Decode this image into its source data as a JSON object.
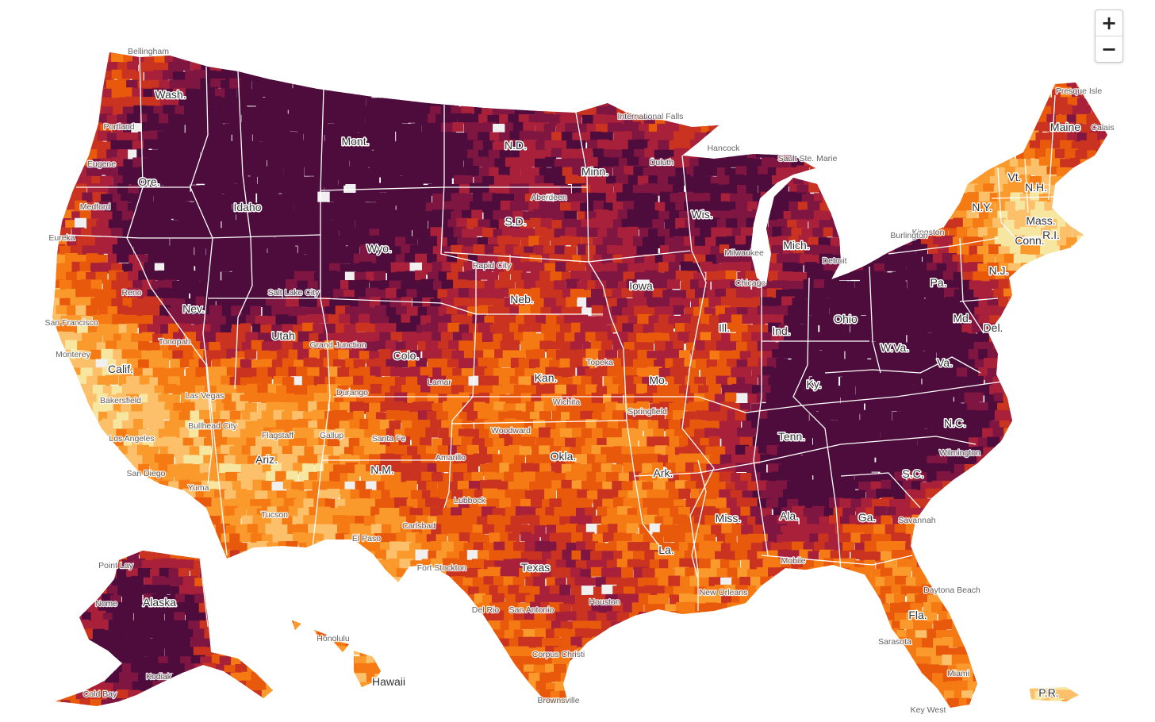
{
  "zoom": {
    "in_label": "+",
    "out_label": "−"
  },
  "colors": {
    "scale": [
      "#f7e6a0",
      "#fdc06a",
      "#fb9a2c",
      "#f57a14",
      "#e8590c",
      "#c9331f",
      "#a8203a",
      "#7f1642",
      "#4d0c3c"
    ],
    "state_border": "#ffffff",
    "missing": "#f0f0f0"
  },
  "state_labels": [
    {
      "id": "wa",
      "text": "Wash."
    },
    {
      "id": "or",
      "text": "Ore."
    },
    {
      "id": "ca",
      "text": "Calif."
    },
    {
      "id": "nv",
      "text": "Nev."
    },
    {
      "id": "id",
      "text": "Idaho"
    },
    {
      "id": "mt",
      "text": "Mont."
    },
    {
      "id": "wy",
      "text": "Wyo."
    },
    {
      "id": "ut",
      "text": "Utah"
    },
    {
      "id": "az",
      "text": "Ariz."
    },
    {
      "id": "co",
      "text": "Colo."
    },
    {
      "id": "nm",
      "text": "N.M."
    },
    {
      "id": "nd",
      "text": "N.D."
    },
    {
      "id": "sd",
      "text": "S.D."
    },
    {
      "id": "ne",
      "text": "Neb."
    },
    {
      "id": "ks",
      "text": "Kan."
    },
    {
      "id": "ok",
      "text": "Okla."
    },
    {
      "id": "tx",
      "text": "Texas"
    },
    {
      "id": "mn",
      "text": "Minn."
    },
    {
      "id": "ia",
      "text": "Iowa"
    },
    {
      "id": "mo",
      "text": "Mo."
    },
    {
      "id": "ar",
      "text": "Ark."
    },
    {
      "id": "la",
      "text": "La."
    },
    {
      "id": "wi",
      "text": "Wis."
    },
    {
      "id": "il",
      "text": "Ill."
    },
    {
      "id": "mi",
      "text": "Mich."
    },
    {
      "id": "in",
      "text": "Ind."
    },
    {
      "id": "oh",
      "text": "Ohio"
    },
    {
      "id": "ky",
      "text": "Ky."
    },
    {
      "id": "tn",
      "text": "Tenn."
    },
    {
      "id": "ms",
      "text": "Miss."
    },
    {
      "id": "al",
      "text": "Ala."
    },
    {
      "id": "ga",
      "text": "Ga."
    },
    {
      "id": "fl",
      "text": "Fla."
    },
    {
      "id": "sc",
      "text": "S.C."
    },
    {
      "id": "nc",
      "text": "N.C."
    },
    {
      "id": "va",
      "text": "Va."
    },
    {
      "id": "wv",
      "text": "W.Va."
    },
    {
      "id": "pa",
      "text": "Pa."
    },
    {
      "id": "ny",
      "text": "N.Y."
    },
    {
      "id": "vt",
      "text": "Vt."
    },
    {
      "id": "nh",
      "text": "N.H."
    },
    {
      "id": "me",
      "text": "Maine"
    },
    {
      "id": "ma",
      "text": "Mass."
    },
    {
      "id": "ri",
      "text": "R.I."
    },
    {
      "id": "ct",
      "text": "Conn."
    },
    {
      "id": "nj",
      "text": "N.J."
    },
    {
      "id": "de",
      "text": "Del."
    },
    {
      "id": "md",
      "text": "Md."
    },
    {
      "id": "ak",
      "text": "Alaska"
    },
    {
      "id": "hi",
      "text": "Hawaii"
    },
    {
      "id": "pr",
      "text": "P.R."
    }
  ],
  "city_labels": [
    "Bellingham",
    "Portland",
    "Eugene",
    "Medford",
    "Eureka",
    "San Francisco",
    "Monterey",
    "Bakersfield",
    "Los Angeles",
    "San Diego",
    "Reno",
    "Tonopah",
    "Las Vegas",
    "Bullhead City",
    "Flagstaff",
    "Gallup",
    "Yuma",
    "Tucson",
    "El Paso",
    "Salt Lake City",
    "Grand Junction",
    "Durango",
    "Santa Fe",
    "Amarillo",
    "Lubbock",
    "Carlsbad",
    "Fort Stockton",
    "Del Rio",
    "San Antonio",
    "Houston",
    "Corpus Christi",
    "Brownsville",
    "Aberdeen",
    "Rapid City",
    "Wichita",
    "Woodward",
    "Topeka",
    "Springfield",
    "Lamar",
    "International Falls",
    "Duluth",
    "Hancock",
    "Sault Ste. Marie",
    "Milwaukee",
    "Chicago",
    "Detroit",
    "Kingston",
    "Presque Isle",
    "Calais",
    "Burlington",
    "Wilmington",
    "Savannah",
    "Daytona Beach",
    "Sarasota",
    "Miami",
    "Key West",
    "New Orleans",
    "Mobile",
    "Point Lay",
    "Cold Bay",
    "Kodiak",
    "Nome",
    "Honolulu"
  ]
}
